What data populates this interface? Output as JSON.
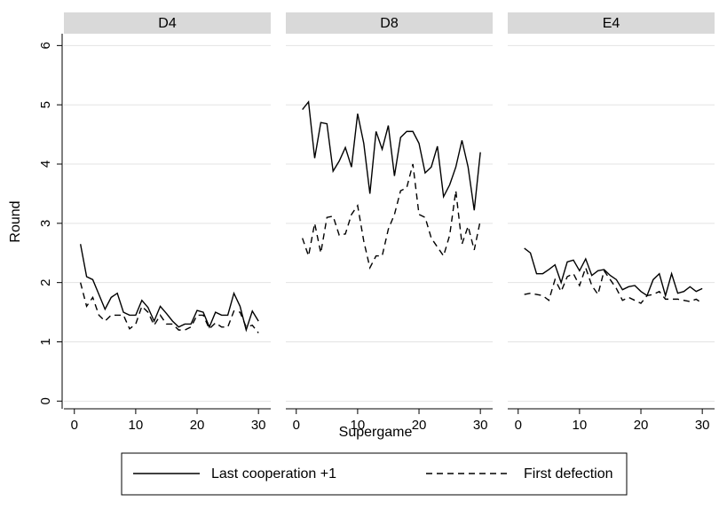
{
  "chart_data": {
    "type": "line",
    "x_label": "Supergame",
    "y_label": "Round",
    "x": [
      1,
      2,
      3,
      4,
      5,
      6,
      7,
      8,
      9,
      10,
      11,
      12,
      13,
      14,
      15,
      16,
      17,
      18,
      19,
      20,
      21,
      22,
      23,
      24,
      25,
      26,
      27,
      28,
      29,
      30
    ],
    "xlim": [
      -1.7,
      32
    ],
    "xticks": [
      0,
      10,
      20,
      30
    ],
    "ylim": [
      -0.13,
      6.2
    ],
    "yticks": [
      0,
      1,
      2,
      3,
      4,
      5,
      6
    ],
    "grid": true,
    "legend": "bottom",
    "panels": [
      {
        "title": "D4",
        "series": [
          {
            "name": "Last cooperation +1",
            "color": "#000000",
            "dash": "solid",
            "values": [
              2.65,
              2.1,
              2.05,
              1.8,
              1.55,
              1.75,
              1.82,
              1.5,
              1.45,
              1.45,
              1.7,
              1.58,
              1.35,
              1.6,
              1.48,
              1.35,
              1.25,
              1.3,
              1.3,
              1.53,
              1.5,
              1.25,
              1.5,
              1.45,
              1.45,
              1.82,
              1.6,
              1.2,
              1.52,
              1.35
            ]
          },
          {
            "name": "First defection",
            "color": "#000000",
            "dash": "dashed",
            "values": [
              2.0,
              1.6,
              1.75,
              1.45,
              1.35,
              1.45,
              1.45,
              1.45,
              1.22,
              1.3,
              1.6,
              1.5,
              1.28,
              1.45,
              1.3,
              1.3,
              1.2,
              1.2,
              1.25,
              1.45,
              1.45,
              1.22,
              1.32,
              1.25,
              1.25,
              1.52,
              1.5,
              1.25,
              1.28,
              1.15
            ]
          }
        ]
      },
      {
        "title": "D8",
        "series": [
          {
            "name": "Last cooperation +1",
            "color": "#000000",
            "dash": "solid",
            "values": [
              4.92,
              5.05,
              4.1,
              4.7,
              4.68,
              3.88,
              4.05,
              4.28,
              3.95,
              4.85,
              4.35,
              3.5,
              4.55,
              4.25,
              4.65,
              3.8,
              4.45,
              4.55,
              4.55,
              4.35,
              3.85,
              3.95,
              4.3,
              3.45,
              3.65,
              3.95,
              4.4,
              3.95,
              3.22,
              4.2
            ]
          },
          {
            "name": "First defection",
            "color": "#000000",
            "dash": "dashed",
            "values": [
              2.75,
              2.45,
              3.0,
              2.5,
              3.1,
              3.12,
              2.8,
              2.82,
              3.15,
              3.3,
              2.7,
              2.25,
              2.45,
              2.45,
              2.9,
              3.15,
              3.55,
              3.6,
              4.0,
              3.15,
              3.1,
              2.75,
              2.6,
              2.45,
              2.8,
              3.55,
              2.65,
              2.95,
              2.55,
              3.05
            ]
          }
        ]
      },
      {
        "title": "E4",
        "series": [
          {
            "name": "Last cooperation +1",
            "color": "#000000",
            "dash": "solid",
            "values": [
              2.58,
              2.5,
              2.15,
              2.15,
              2.22,
              2.3,
              2.0,
              2.35,
              2.38,
              2.2,
              2.4,
              2.12,
              2.2,
              2.22,
              2.12,
              2.05,
              1.88,
              1.93,
              1.95,
              1.85,
              1.78,
              2.05,
              2.15,
              1.78,
              2.15,
              1.82,
              1.85,
              1.93,
              1.85,
              1.9
            ]
          },
          {
            "name": "First defection",
            "color": "#000000",
            "dash": "dashed",
            "values": [
              1.8,
              1.82,
              1.8,
              1.78,
              1.7,
              2.05,
              1.85,
              2.1,
              2.15,
              1.95,
              2.25,
              1.95,
              1.8,
              2.2,
              2.05,
              1.9,
              1.7,
              1.75,
              1.7,
              1.65,
              1.78,
              1.8,
              1.85,
              1.72,
              1.72,
              1.72,
              1.7,
              1.68,
              1.72,
              1.65
            ]
          }
        ]
      }
    ]
  }
}
